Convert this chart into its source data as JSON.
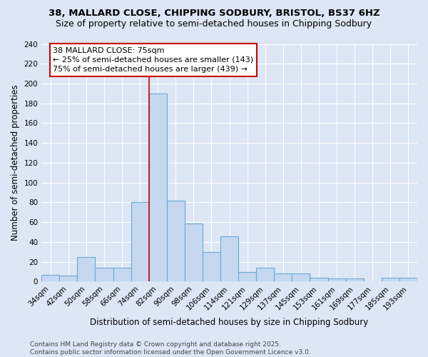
{
  "title": "38, MALLARD CLOSE, CHIPPING SODBURY, BRISTOL, BS37 6HZ",
  "subtitle": "Size of property relative to semi-detached houses in Chipping Sodbury",
  "xlabel": "Distribution of semi-detached houses by size in Chipping Sodbury",
  "ylabel": "Number of semi-detached properties",
  "categories": [
    "34sqm",
    "42sqm",
    "50sqm",
    "58sqm",
    "66sqm",
    "74sqm",
    "82sqm",
    "90sqm",
    "98sqm",
    "106sqm",
    "114sqm",
    "121sqm",
    "129sqm",
    "137sqm",
    "145sqm",
    "153sqm",
    "161sqm",
    "169sqm",
    "177sqm",
    "185sqm",
    "193sqm"
  ],
  "values": [
    7,
    6,
    25,
    14,
    14,
    80,
    190,
    82,
    59,
    30,
    46,
    10,
    14,
    8,
    8,
    4,
    3,
    3,
    0,
    4,
    4
  ],
  "bar_color": "#c5d8f0",
  "bar_edge_color": "#6aaad4",
  "vline_bin_index": 6,
  "annotation_title": "38 MALLARD CLOSE: 75sqm",
  "annotation_line1": "← 25% of semi-detached houses are smaller (143)",
  "annotation_line2": "75% of semi-detached houses are larger (439) →",
  "annotation_box_color": "#ffffff",
  "annotation_box_edge": "#cc0000",
  "vline_color": "#cc0000",
  "ylim": [
    0,
    240
  ],
  "yticks": [
    0,
    20,
    40,
    60,
    80,
    100,
    120,
    140,
    160,
    180,
    200,
    220,
    240
  ],
  "background_color": "#dce6f5",
  "grid_color": "#ffffff",
  "footer_line1": "Contains HM Land Registry data © Crown copyright and database right 2025.",
  "footer_line2": "Contains public sector information licensed under the Open Government Licence v3.0.",
  "title_fontsize": 9.5,
  "subtitle_fontsize": 9,
  "axis_label_fontsize": 8.5,
  "tick_fontsize": 7.5,
  "annotation_fontsize": 8,
  "footer_fontsize": 6.5
}
